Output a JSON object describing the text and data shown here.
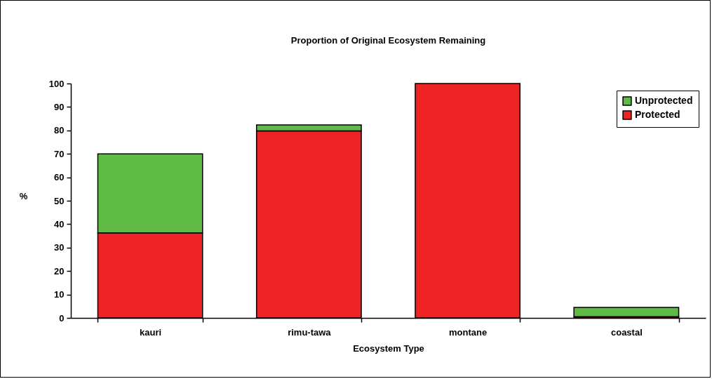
{
  "chart_data": {
    "type": "bar",
    "title": "Proportion of Original Ecosystem Remaining",
    "xlabel": "Ecosystem Type",
    "ylabel": "%",
    "categories": [
      "kauri",
      "rimu-tawa",
      "montane",
      "coastal"
    ],
    "series": [
      {
        "name": "Protected",
        "color": "#ed2324",
        "values": [
          36.3,
          79.8,
          100,
          0.5
        ]
      },
      {
        "name": "Unprotected",
        "color": "#5fbb46",
        "values": [
          33.7,
          2.5,
          null,
          4
        ]
      }
    ],
    "stacked": true,
    "ylim": [
      0,
      100
    ],
    "yticks": [
      0,
      10,
      20,
      30,
      40,
      50,
      60,
      70,
      80,
      90,
      100
    ],
    "grid": false,
    "legend": "top right"
  }
}
